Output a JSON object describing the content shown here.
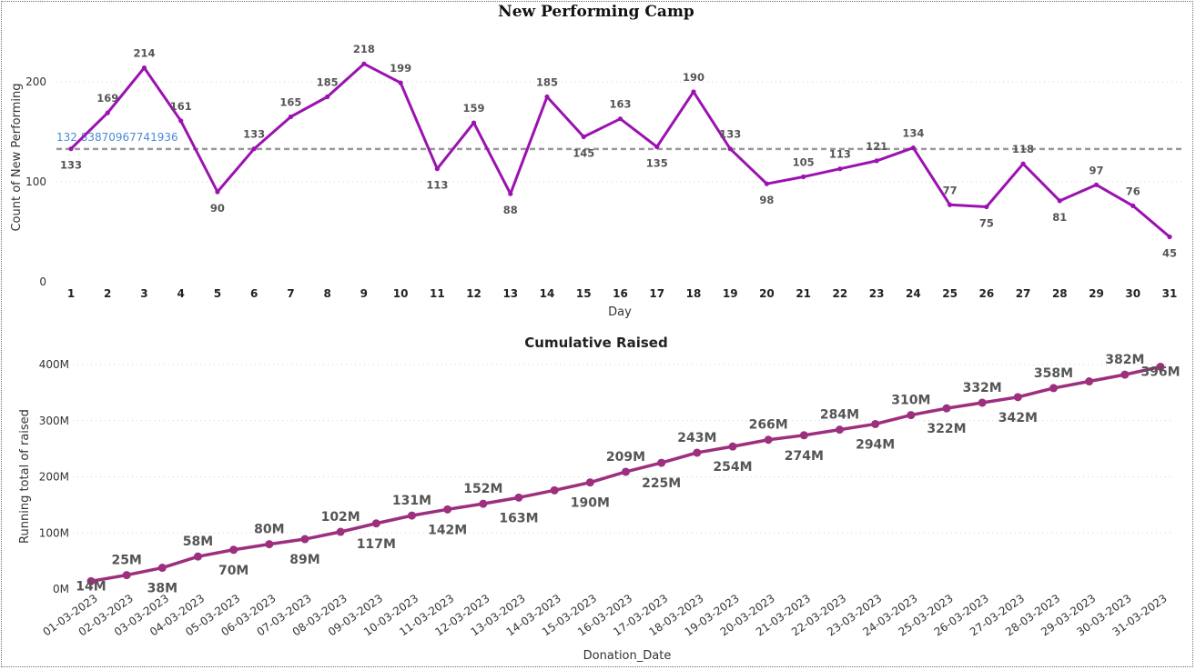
{
  "chart_data": [
    {
      "type": "line",
      "title": "New Performing Camp",
      "xlabel": "Day",
      "ylabel": "Count of New Performing",
      "categories": [
        "1",
        "2",
        "3",
        "4",
        "5",
        "6",
        "7",
        "8",
        "9",
        "10",
        "11",
        "12",
        "13",
        "14",
        "15",
        "16",
        "17",
        "18",
        "19",
        "20",
        "21",
        "22",
        "23",
        "24",
        "25",
        "26",
        "27",
        "28",
        "29",
        "30",
        "31"
      ],
      "values": [
        133,
        169,
        214,
        161,
        90,
        133,
        165,
        185,
        218,
        199,
        113,
        159,
        88,
        185,
        145,
        163,
        135,
        190,
        133,
        98,
        105,
        113,
        121,
        134,
        77,
        75,
        118,
        81,
        97,
        76,
        45
      ],
      "y_ticks": [
        "0",
        "100",
        "200"
      ],
      "ylim": [
        0,
        230
      ],
      "reference_line": {
        "value": 132.8387,
        "label": "132.83870967741936"
      },
      "color": "#9b12b0",
      "grid": true
    },
    {
      "type": "line",
      "title": "Cumulative Raised",
      "xlabel": "Donation_Date",
      "ylabel": "Running total of raised",
      "categories": [
        "01-03-2023",
        "02-03-2023",
        "03-03-2023",
        "04-03-2023",
        "05-03-2023",
        "06-03-2023",
        "07-03-2023",
        "08-03-2023",
        "09-03-2023",
        "10-03-2023",
        "11-03-2023",
        "12-03-2023",
        "13-03-2023",
        "14-03-2023",
        "15-03-2023",
        "16-03-2023",
        "17-03-2023",
        "18-03-2023",
        "19-03-2023",
        "20-03-2023",
        "21-03-2023",
        "22-03-2023",
        "23-03-2023",
        "24-03-2023",
        "25-03-2023",
        "26-03-2023",
        "27-03-2023",
        "28-03-2023",
        "29-03-2023",
        "30-03-2023",
        "31-03-2023"
      ],
      "values": [
        14,
        25,
        38,
        58,
        70,
        80,
        89,
        102,
        117,
        131,
        142,
        152,
        163,
        176,
        190,
        209,
        225,
        243,
        254,
        266,
        274,
        284,
        294,
        310,
        322,
        332,
        342,
        358,
        370,
        382,
        396
      ],
      "data_labels": [
        "14M",
        "25M",
        "38M",
        "58M",
        "70M",
        "80M",
        "89M",
        "102M",
        "117M",
        "131M",
        "142M",
        "152M",
        "163M",
        "",
        "190M",
        "209M",
        "225M",
        "243M",
        "254M",
        "266M",
        "274M",
        "284M",
        "294M",
        "310M",
        "322M",
        "332M",
        "342M",
        "358M",
        "",
        "382M",
        "396M"
      ],
      "unit": "M",
      "y_ticks": [
        "0M",
        "100M",
        "200M",
        "300M",
        "400M"
      ],
      "ylim": [
        0,
        400
      ],
      "color": "#9c2f7e",
      "grid": true
    }
  ]
}
